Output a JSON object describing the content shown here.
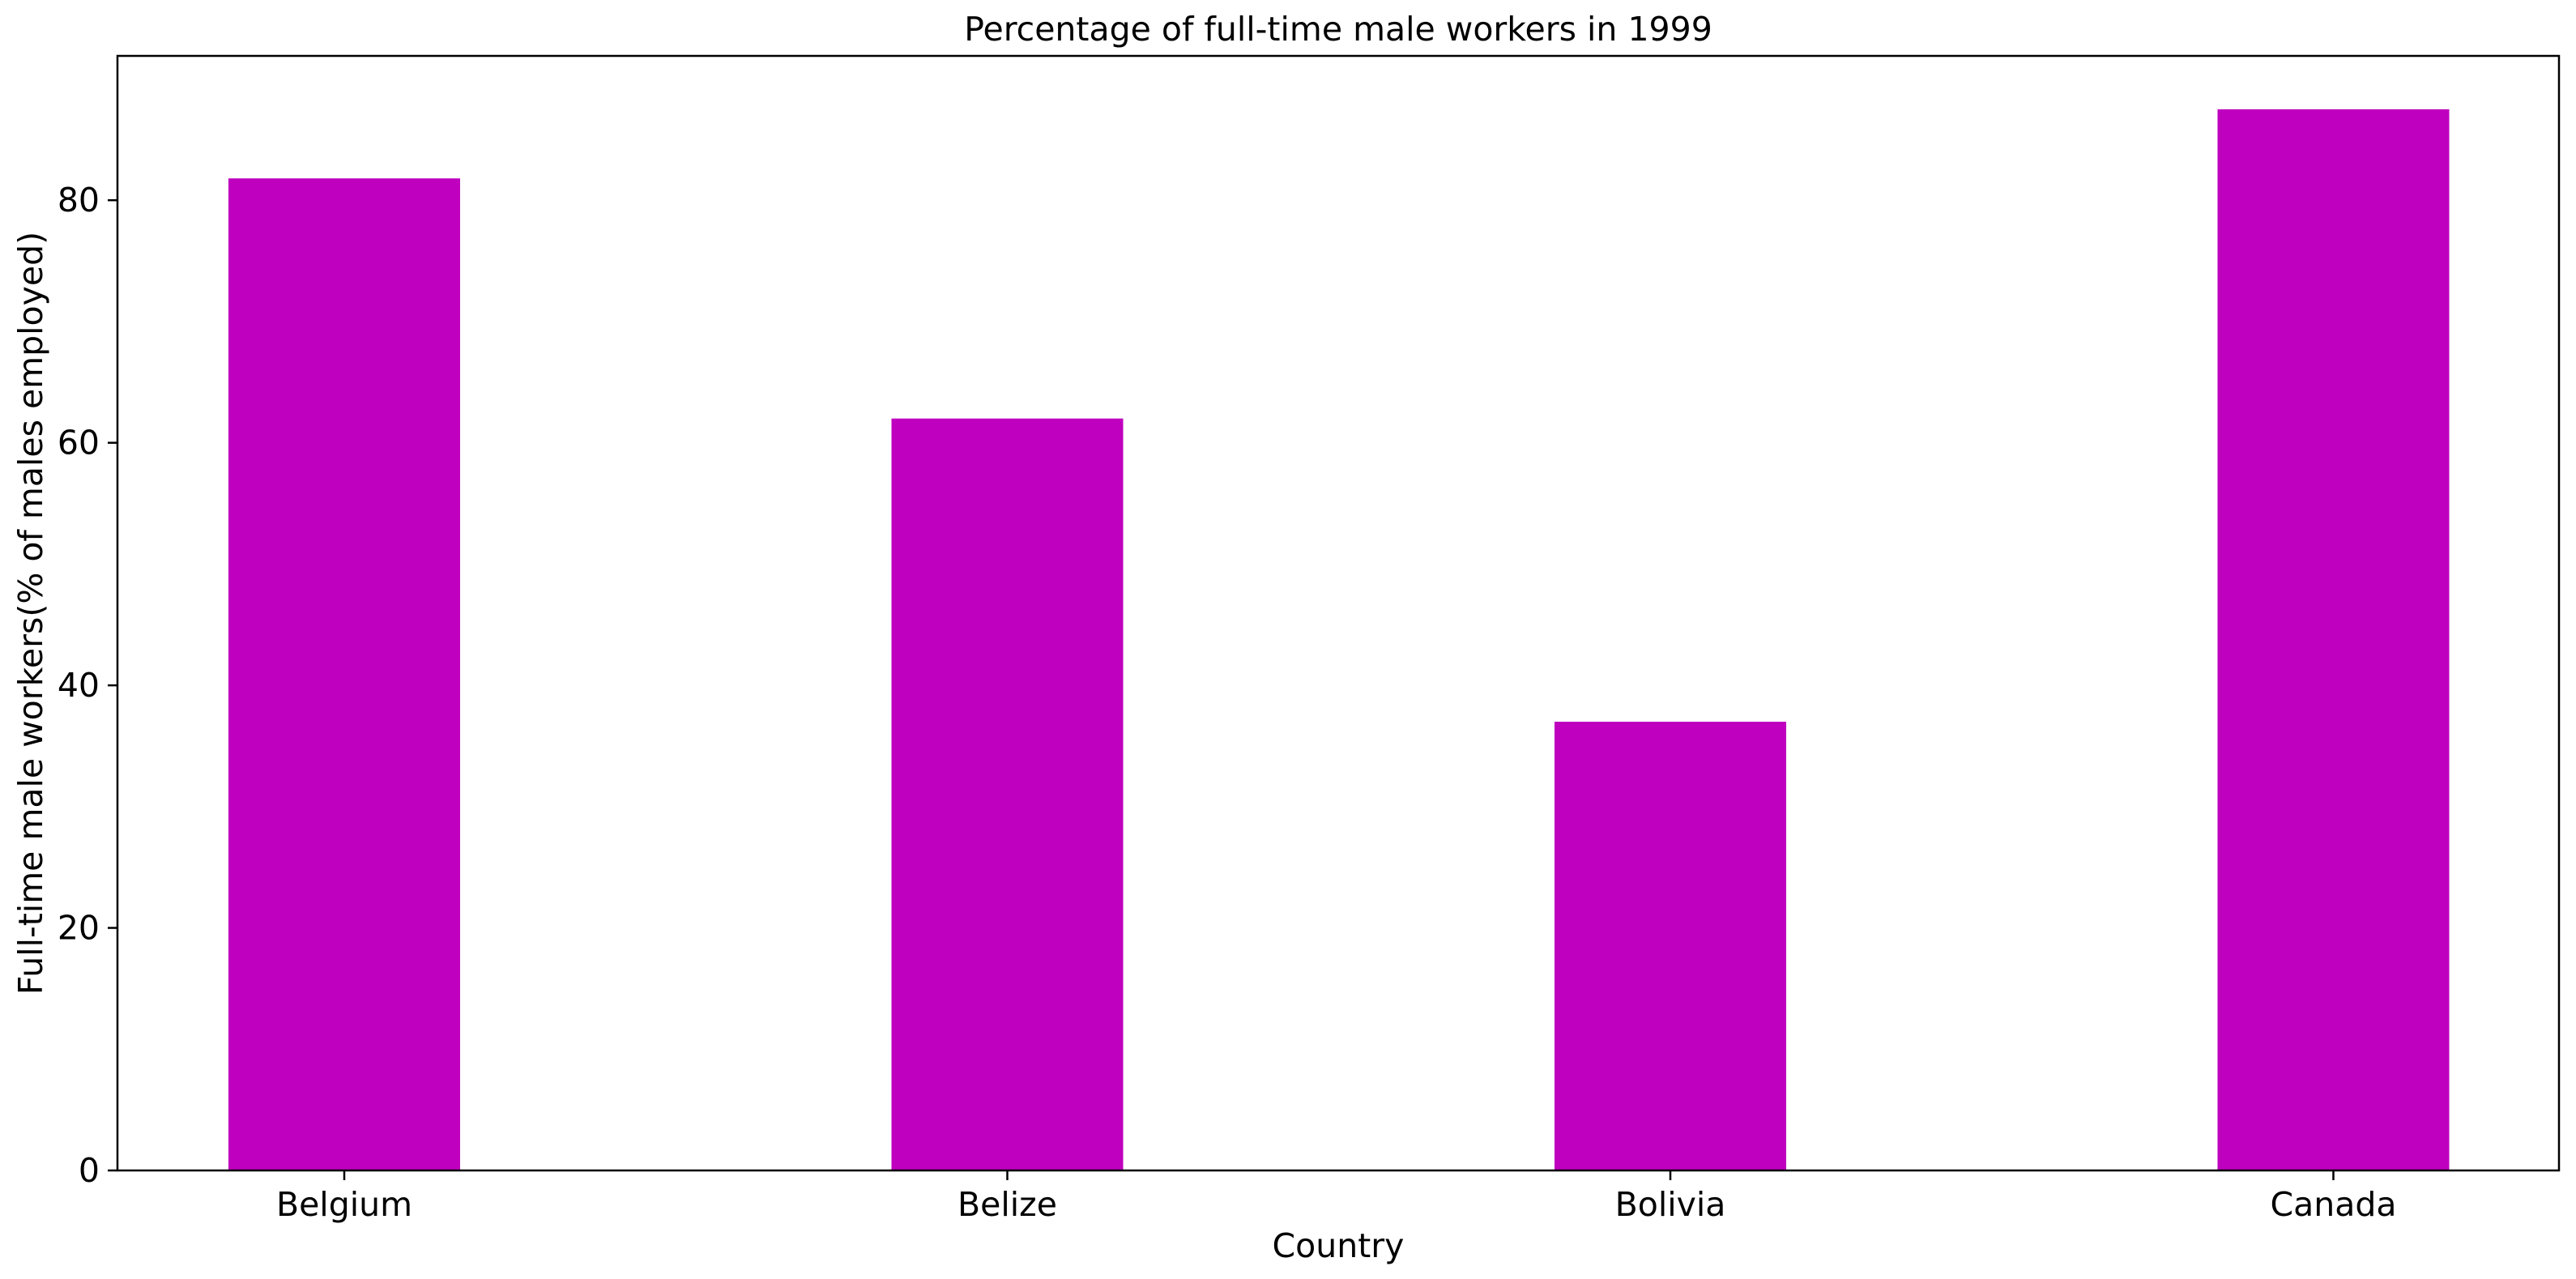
{
  "chart_data": {
    "type": "bar",
    "title": "Percentage of full-time male workers in 1999",
    "xlabel": "Country",
    "ylabel": "Full-time male workers(% of males employed)",
    "categories": [
      "Belgium",
      "Belize",
      "Bolivia",
      "Canada"
    ],
    "values": [
      81.8,
      62.0,
      37.0,
      87.5
    ],
    "ylim": [
      0,
      91.9
    ],
    "yticks": [
      0,
      20,
      40,
      60,
      80
    ],
    "grid": false,
    "legend": "none",
    "bar_color": "#bf00bf"
  }
}
